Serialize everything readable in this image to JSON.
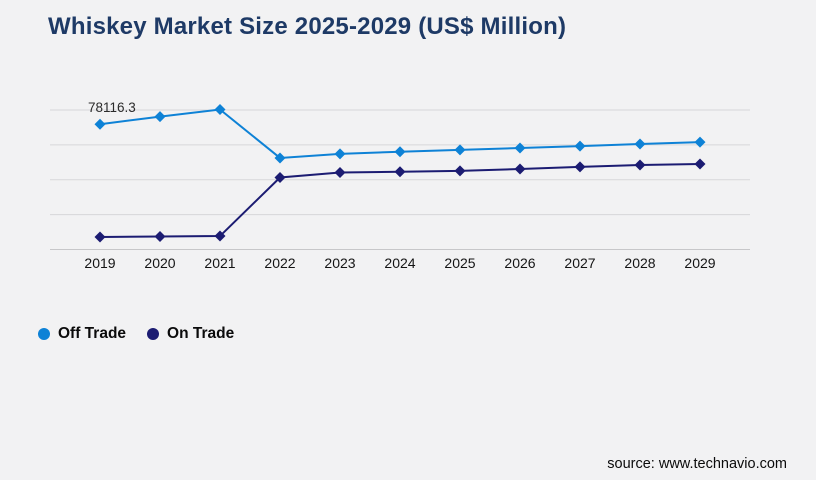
{
  "title": "Whiskey Market Size 2025-2029 (US$ Million)",
  "source": "source: www.technavio.com",
  "colors": {
    "background": "#f2f2f3",
    "title": "#1e3a66",
    "off_trade": "#0e82d6",
    "on_trade": "#1c1c72",
    "gridline": "#d7d7d9",
    "axis_line": "#c7c7c9",
    "label_text": "#141414",
    "annotation_text": "#2b2b2b"
  },
  "legend": {
    "items": [
      {
        "label": "Off Trade",
        "color": "#0e82d6"
      },
      {
        "label": "On Trade",
        "color": "#1c1c72"
      }
    ]
  },
  "chart_data": {
    "type": "line",
    "title": "Whiskey Market Size 2025-2029 (US$ Million)",
    "x": [
      "2019",
      "2020",
      "2021",
      "2022",
      "2023",
      "2024",
      "2025",
      "2026",
      "2027",
      "2028",
      "2029"
    ],
    "series": [
      {
        "name": "Off Trade",
        "color": "#0e82d6",
        "marker": "diamond",
        "values": [
          78116.3,
          82900,
          87300,
          57100,
          59600,
          61000,
          62100,
          63300,
          64500,
          65800,
          67000
        ]
      },
      {
        "name": "On Trade",
        "color": "#1c1c72",
        "marker": "diamond",
        "values": [
          7800,
          8100,
          8400,
          44900,
          48000,
          48500,
          49000,
          50200,
          51500,
          52700,
          53300
        ]
      }
    ],
    "annotation": {
      "text": "78116.3",
      "series": "Off Trade",
      "x": "2019"
    },
    "xlabel": "",
    "ylabel": "",
    "ylim": [
      0,
      87000
    ],
    "gridline_count": 5,
    "y_axis_labels_visible": false,
    "grid": "horizontal",
    "legend_position": "bottom-left"
  }
}
